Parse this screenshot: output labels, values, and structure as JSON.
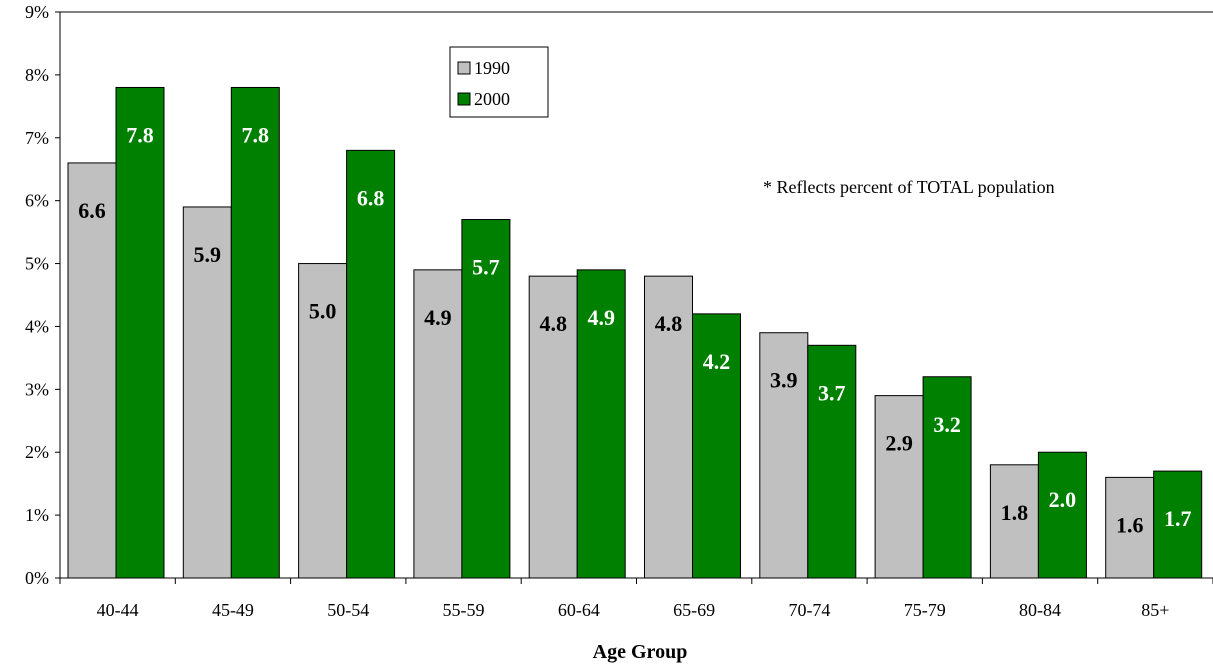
{
  "chart_data": {
    "type": "bar",
    "categories": [
      "40-44",
      "45-49",
      "50-54",
      "55-59",
      "60-64",
      "65-69",
      "70-74",
      "75-79",
      "80-84",
      "85+"
    ],
    "series": [
      {
        "name": "1990",
        "values": [
          6.6,
          5.9,
          5.0,
          4.9,
          4.8,
          4.8,
          3.9,
          2.9,
          1.8,
          1.6
        ],
        "color": "#c0c0c0",
        "label_color": "#000000"
      },
      {
        "name": "2000",
        "values": [
          7.8,
          7.8,
          6.8,
          5.7,
          4.9,
          4.2,
          3.7,
          3.2,
          2.0,
          1.7
        ],
        "color": "#008000",
        "label_color": "#ffffff"
      }
    ],
    "y_ticks": [
      "0%",
      "1%",
      "2%",
      "3%",
      "4%",
      "5%",
      "6%",
      "7%",
      "8%",
      "9%"
    ],
    "ylim": [
      0,
      9
    ],
    "xlabel": "Age Group",
    "ylabel": "",
    "title": "",
    "annotation": "* Reflects percent of TOTAL population",
    "legend_position": "top-center",
    "grid": false
  }
}
